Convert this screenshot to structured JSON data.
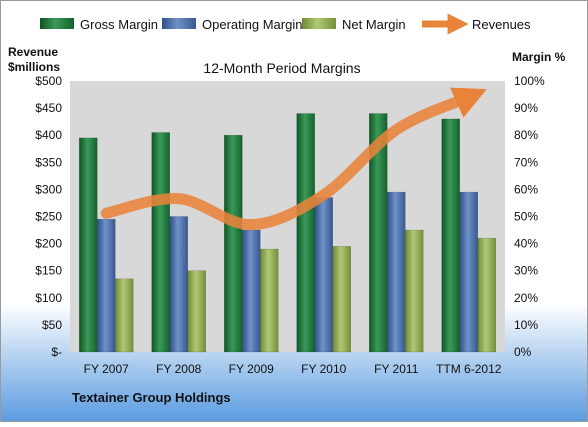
{
  "colors": {
    "gross": "#1f7a3c",
    "operating": "#4a6fa8",
    "net": "#8faa4e",
    "revenues": "#e8833a",
    "background_top": "#ffffff",
    "background_bottom": "#5a9be0",
    "plot_area": "#d8d8d8"
  },
  "chart_data": {
    "type": "bar",
    "title": "12-Month Period Margins",
    "company": "Textainer Group Holdings",
    "categories": [
      "FY 2007",
      "FY 2008",
      "FY 2009",
      "FY 2010",
      "FY 2011",
      "TTM 6-2012"
    ],
    "left_axis": {
      "label_line1": "Revenue",
      "label_line2": "$millions",
      "range": [
        0,
        500
      ],
      "ticks": [
        "$-",
        "$50",
        "$100",
        "$150",
        "$200",
        "$250",
        "$300",
        "$350",
        "$400",
        "$450",
        "$500"
      ]
    },
    "right_axis": {
      "label": "Margin %",
      "range": [
        0,
        100
      ],
      "ticks": [
        "0%",
        "10%",
        "20%",
        "30%",
        "40%",
        "50%",
        "60%",
        "70%",
        "80%",
        "90%",
        "100%"
      ]
    },
    "series": [
      {
        "name": "Gross Margin",
        "axis": "right",
        "values": [
          79,
          81,
          80,
          88,
          88,
          86
        ]
      },
      {
        "name": "Operating Margin",
        "axis": "right",
        "values": [
          49,
          50,
          45,
          57,
          59,
          59
        ]
      },
      {
        "name": "Net Margin",
        "axis": "right",
        "values": [
          27,
          30,
          38,
          39,
          45,
          42
        ]
      },
      {
        "name": "Revenues",
        "axis": "left",
        "type": "line",
        "values": [
          256,
          283,
          235,
          290,
          410,
          470
        ]
      }
    ],
    "legend_position": "top",
    "grid": false
  }
}
